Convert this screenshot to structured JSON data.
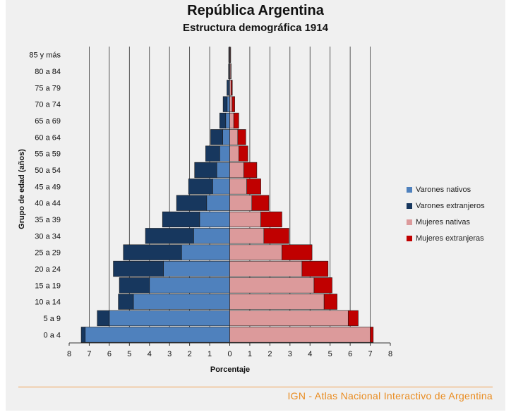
{
  "footer": "IGN - Atlas Nacional Interactivo de Argentina",
  "chart_data": {
    "type": "bar",
    "orientation": "horizontal-population-pyramid",
    "title": "República Argentina",
    "subtitle": "Estructura demográfica 1914",
    "xlabel": "Porcentaje",
    "ylabel": "Grupo de edad (años)",
    "xlim": [
      -8,
      8
    ],
    "xticks": [
      -8,
      -7,
      -6,
      -5,
      -4,
      -3,
      -2,
      -1,
      0,
      1,
      2,
      3,
      4,
      5,
      6,
      7,
      8
    ],
    "xtick_labels": [
      "8",
      "7",
      "6",
      "5",
      "4",
      "3",
      "2",
      "1",
      "0",
      "1",
      "2",
      "3",
      "4",
      "5",
      "6",
      "7",
      "8"
    ],
    "categories": [
      "0 a 4",
      "5 a 9",
      "10 a 14",
      "15 a 19",
      "20 a 24",
      "25 a 29",
      "30 a 34",
      "35 a 39",
      "40 a 44",
      "45 a 49",
      "50 a 54",
      "55 a 59",
      "60 a 64",
      "65 a 69",
      "70 a 74",
      "75 a 79",
      "80 a 84",
      "85 y más"
    ],
    "series": [
      {
        "name": "Varones nativos",
        "side": "left",
        "color": "#4f81bd",
        "values": [
          7.2,
          6.0,
          4.8,
          4.0,
          3.3,
          2.4,
          1.8,
          1.5,
          1.15,
          0.85,
          0.65,
          0.5,
          0.35,
          0.2,
          0.13,
          0.07,
          0.04,
          0.03
        ]
      },
      {
        "name": "Varones extranjeros",
        "side": "left",
        "color": "#17375e",
        "values": [
          0.2,
          0.6,
          0.75,
          1.5,
          2.5,
          2.9,
          2.4,
          1.85,
          1.5,
          1.2,
          1.1,
          0.7,
          0.6,
          0.3,
          0.2,
          0.07,
          0.02,
          0.02
        ]
      },
      {
        "name": "Mujeres nativas",
        "side": "right",
        "color": "#dc9a9b",
        "values": [
          7.0,
          5.9,
          4.7,
          4.2,
          3.6,
          2.6,
          1.7,
          1.55,
          1.1,
          0.85,
          0.7,
          0.45,
          0.4,
          0.2,
          0.12,
          0.07,
          0.05,
          0.04
        ]
      },
      {
        "name": "Mujeres extranjeras",
        "side": "right",
        "color": "#c00000",
        "values": [
          0.15,
          0.5,
          0.65,
          0.9,
          1.3,
          1.5,
          1.25,
          1.05,
          0.85,
          0.7,
          0.65,
          0.45,
          0.4,
          0.25,
          0.13,
          0.06,
          0.02,
          0.01
        ]
      }
    ],
    "legend_position": "right",
    "grid": "vertical"
  }
}
